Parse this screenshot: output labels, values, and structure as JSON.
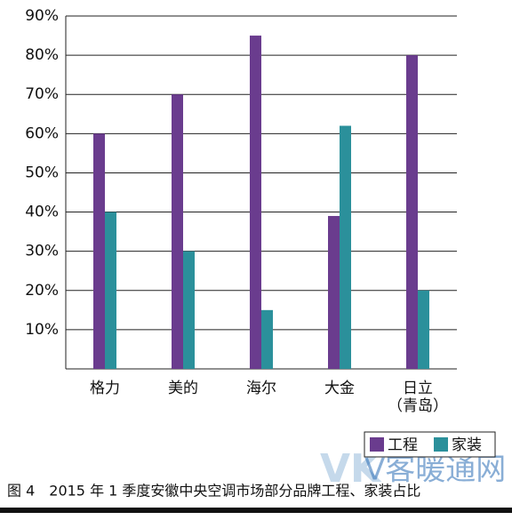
{
  "chart_data": {
    "type": "bar",
    "categories": [
      "格力",
      "美的",
      "海尔",
      "大金",
      "日立\n（青岛）"
    ],
    "series": [
      {
        "name": "工程",
        "color": "#6a3c8e",
        "values": [
          60,
          70,
          85,
          39,
          80
        ]
      },
      {
        "name": "家装",
        "color": "#2b909b",
        "values": [
          40,
          30,
          15,
          62,
          20
        ]
      }
    ],
    "ylim": [
      0,
      90
    ],
    "yticks": [
      {
        "value": 10,
        "label": "10%"
      },
      {
        "value": 20,
        "label": "20%"
      },
      {
        "value": 30,
        "label": "30%"
      },
      {
        "value": 40,
        "label": "40%"
      },
      {
        "value": 50,
        "label": "50%"
      },
      {
        "value": 60,
        "label": "60%"
      },
      {
        "value": 70,
        "label": "70%"
      },
      {
        "value": 80,
        "label": "80%"
      },
      {
        "value": 90,
        "label": "90%"
      }
    ],
    "grid": true,
    "legend": "bottom-right",
    "caption": "图 4　2015 年 1 季度安徽中央空调市场部分品牌工程、家装占比",
    "watermark": [
      "VK",
      "V客暖通网"
    ]
  }
}
